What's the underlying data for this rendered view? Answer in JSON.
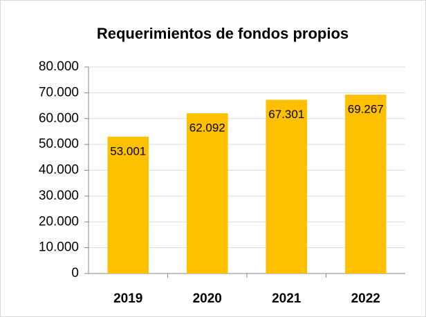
{
  "chart_data": {
    "type": "bar",
    "title": "Requerimientos de fondos propios",
    "categories": [
      "2019",
      "2020",
      "2021",
      "2022"
    ],
    "values": [
      53001,
      62092,
      67301,
      69267
    ],
    "value_labels": [
      "53.001",
      "62.092",
      "67.301",
      "69.267"
    ],
    "color": "#ffc000",
    "ylim": [
      0,
      80000
    ],
    "yticks": [
      0,
      {
        "value": 10000,
        "label": "10.000"
      },
      {
        "value": 20000,
        "label": "20.000"
      },
      {
        "value": 30000,
        "label": "30.000"
      },
      {
        "value": 40000,
        "label": "40.000"
      },
      {
        "value": 50000,
        "label": "50.000"
      },
      {
        "value": 60000,
        "label": "60.000"
      },
      {
        "value": 70000,
        "label": "70.000"
      },
      {
        "value": 80000,
        "label": "80.000"
      }
    ],
    "grid": true
  }
}
